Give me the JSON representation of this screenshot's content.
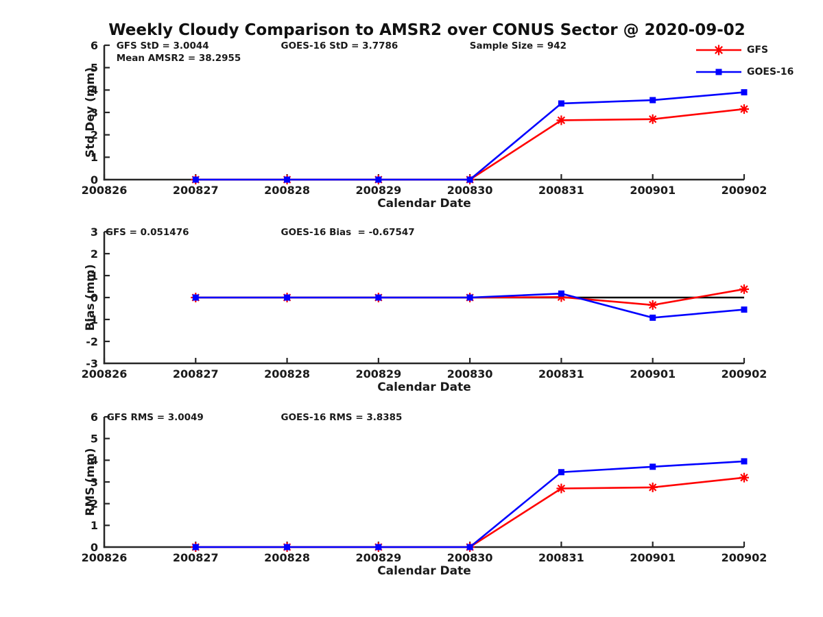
{
  "title": "Weekly Cloudy Comparison to AMSR2 over CONUS Sector @ 2020-09-02",
  "colors": {
    "gfs": "#ff0000",
    "goes16": "#0000ff",
    "axis": "#262626",
    "text": "#1a1a1a",
    "zero_line": "#000000",
    "background": "#ffffff"
  },
  "legend": {
    "items": [
      {
        "label": "GFS",
        "color": "#ff0000",
        "marker": "asterisk"
      },
      {
        "label": "GOES-16",
        "color": "#0000ff",
        "marker": "square"
      }
    ]
  },
  "chart_data": [
    {
      "type": "line",
      "panel": "std-dev",
      "ylabel": "Std Dev (mm)",
      "xlabel": "Calendar Date",
      "ylim": [
        0,
        6
      ],
      "yticks": [
        0,
        1,
        2,
        3,
        4,
        5,
        6
      ],
      "x_categories": [
        "200826",
        "200827",
        "200828",
        "200829",
        "200830",
        "200831",
        "200901",
        "200902"
      ],
      "annotations": [
        {
          "text": "GFS StD = 3.0044",
          "fx": 0.019,
          "row": 0
        },
        {
          "text": "Mean AMSR2 = 38.2955",
          "fx": 0.019,
          "row": 1
        },
        {
          "text": "GOES-16 StD = 3.7786",
          "fx": 0.276,
          "row": 0
        },
        {
          "text": "Sample Size = 942",
          "fx": 0.571,
          "row": 0
        }
      ],
      "series": [
        {
          "name": "GFS",
          "color": "#ff0000",
          "marker": "asterisk",
          "x": [
            "200827",
            "200828",
            "200829",
            "200830",
            "200831",
            "200901",
            "200902"
          ],
          "values": [
            0,
            0,
            0,
            0,
            2.65,
            2.7,
            3.15
          ]
        },
        {
          "name": "GOES-16",
          "color": "#0000ff",
          "marker": "square",
          "x": [
            "200827",
            "200828",
            "200829",
            "200830",
            "200831",
            "200901",
            "200902"
          ],
          "values": [
            0,
            0,
            0,
            0,
            3.4,
            3.55,
            3.9
          ]
        }
      ]
    },
    {
      "type": "line",
      "panel": "bias",
      "ylabel": "Bias (mm)",
      "xlabel": "Calendar Date",
      "ylim": [
        -3,
        3
      ],
      "yticks": [
        -3,
        -2,
        -1,
        0,
        1,
        2,
        3
      ],
      "x_categories": [
        "200826",
        "200827",
        "200828",
        "200829",
        "200830",
        "200831",
        "200901",
        "200902"
      ],
      "annotations": [
        {
          "text": "GFS = 0.051476",
          "fx": 0.002,
          "row": 0
        },
        {
          "text": "GOES-16 Bias  = -0.67547",
          "fx": 0.276,
          "row": 0
        }
      ],
      "zero_line": {
        "y": 0,
        "x_from": "200827",
        "x_to": "200902"
      },
      "series": [
        {
          "name": "GFS",
          "color": "#ff0000",
          "marker": "asterisk",
          "x": [
            "200827",
            "200828",
            "200829",
            "200830",
            "200831",
            "200901",
            "200902"
          ],
          "values": [
            0,
            0,
            0,
            0,
            0.02,
            -0.34,
            0.38
          ]
        },
        {
          "name": "GOES-16",
          "color": "#0000ff",
          "marker": "square",
          "x": [
            "200827",
            "200828",
            "200829",
            "200830",
            "200831",
            "200901",
            "200902"
          ],
          "values": [
            0,
            0,
            0,
            0,
            0.18,
            -0.92,
            -0.55
          ]
        }
      ]
    },
    {
      "type": "line",
      "panel": "rms",
      "ylabel": "RMS (mm)",
      "xlabel": "Calendar Date",
      "ylim": [
        0,
        6
      ],
      "yticks": [
        0,
        1,
        2,
        3,
        4,
        5,
        6
      ],
      "x_categories": [
        "200826",
        "200827",
        "200828",
        "200829",
        "200830",
        "200831",
        "200901",
        "200902"
      ],
      "annotations": [
        {
          "text": "GFS RMS = 3.0049",
          "fx": 0.004,
          "row": 0
        },
        {
          "text": "GOES-16 RMS = 3.8385",
          "fx": 0.276,
          "row": 0
        }
      ],
      "series": [
        {
          "name": "GFS",
          "color": "#ff0000",
          "marker": "asterisk",
          "x": [
            "200827",
            "200828",
            "200829",
            "200830",
            "200831",
            "200901",
            "200902"
          ],
          "values": [
            0,
            0,
            0,
            0,
            2.7,
            2.75,
            3.2
          ]
        },
        {
          "name": "GOES-16",
          "color": "#0000ff",
          "marker": "square",
          "x": [
            "200827",
            "200828",
            "200829",
            "200830",
            "200831",
            "200901",
            "200902"
          ],
          "values": [
            0,
            0,
            0,
            0,
            3.45,
            3.7,
            3.95
          ]
        }
      ]
    }
  ]
}
